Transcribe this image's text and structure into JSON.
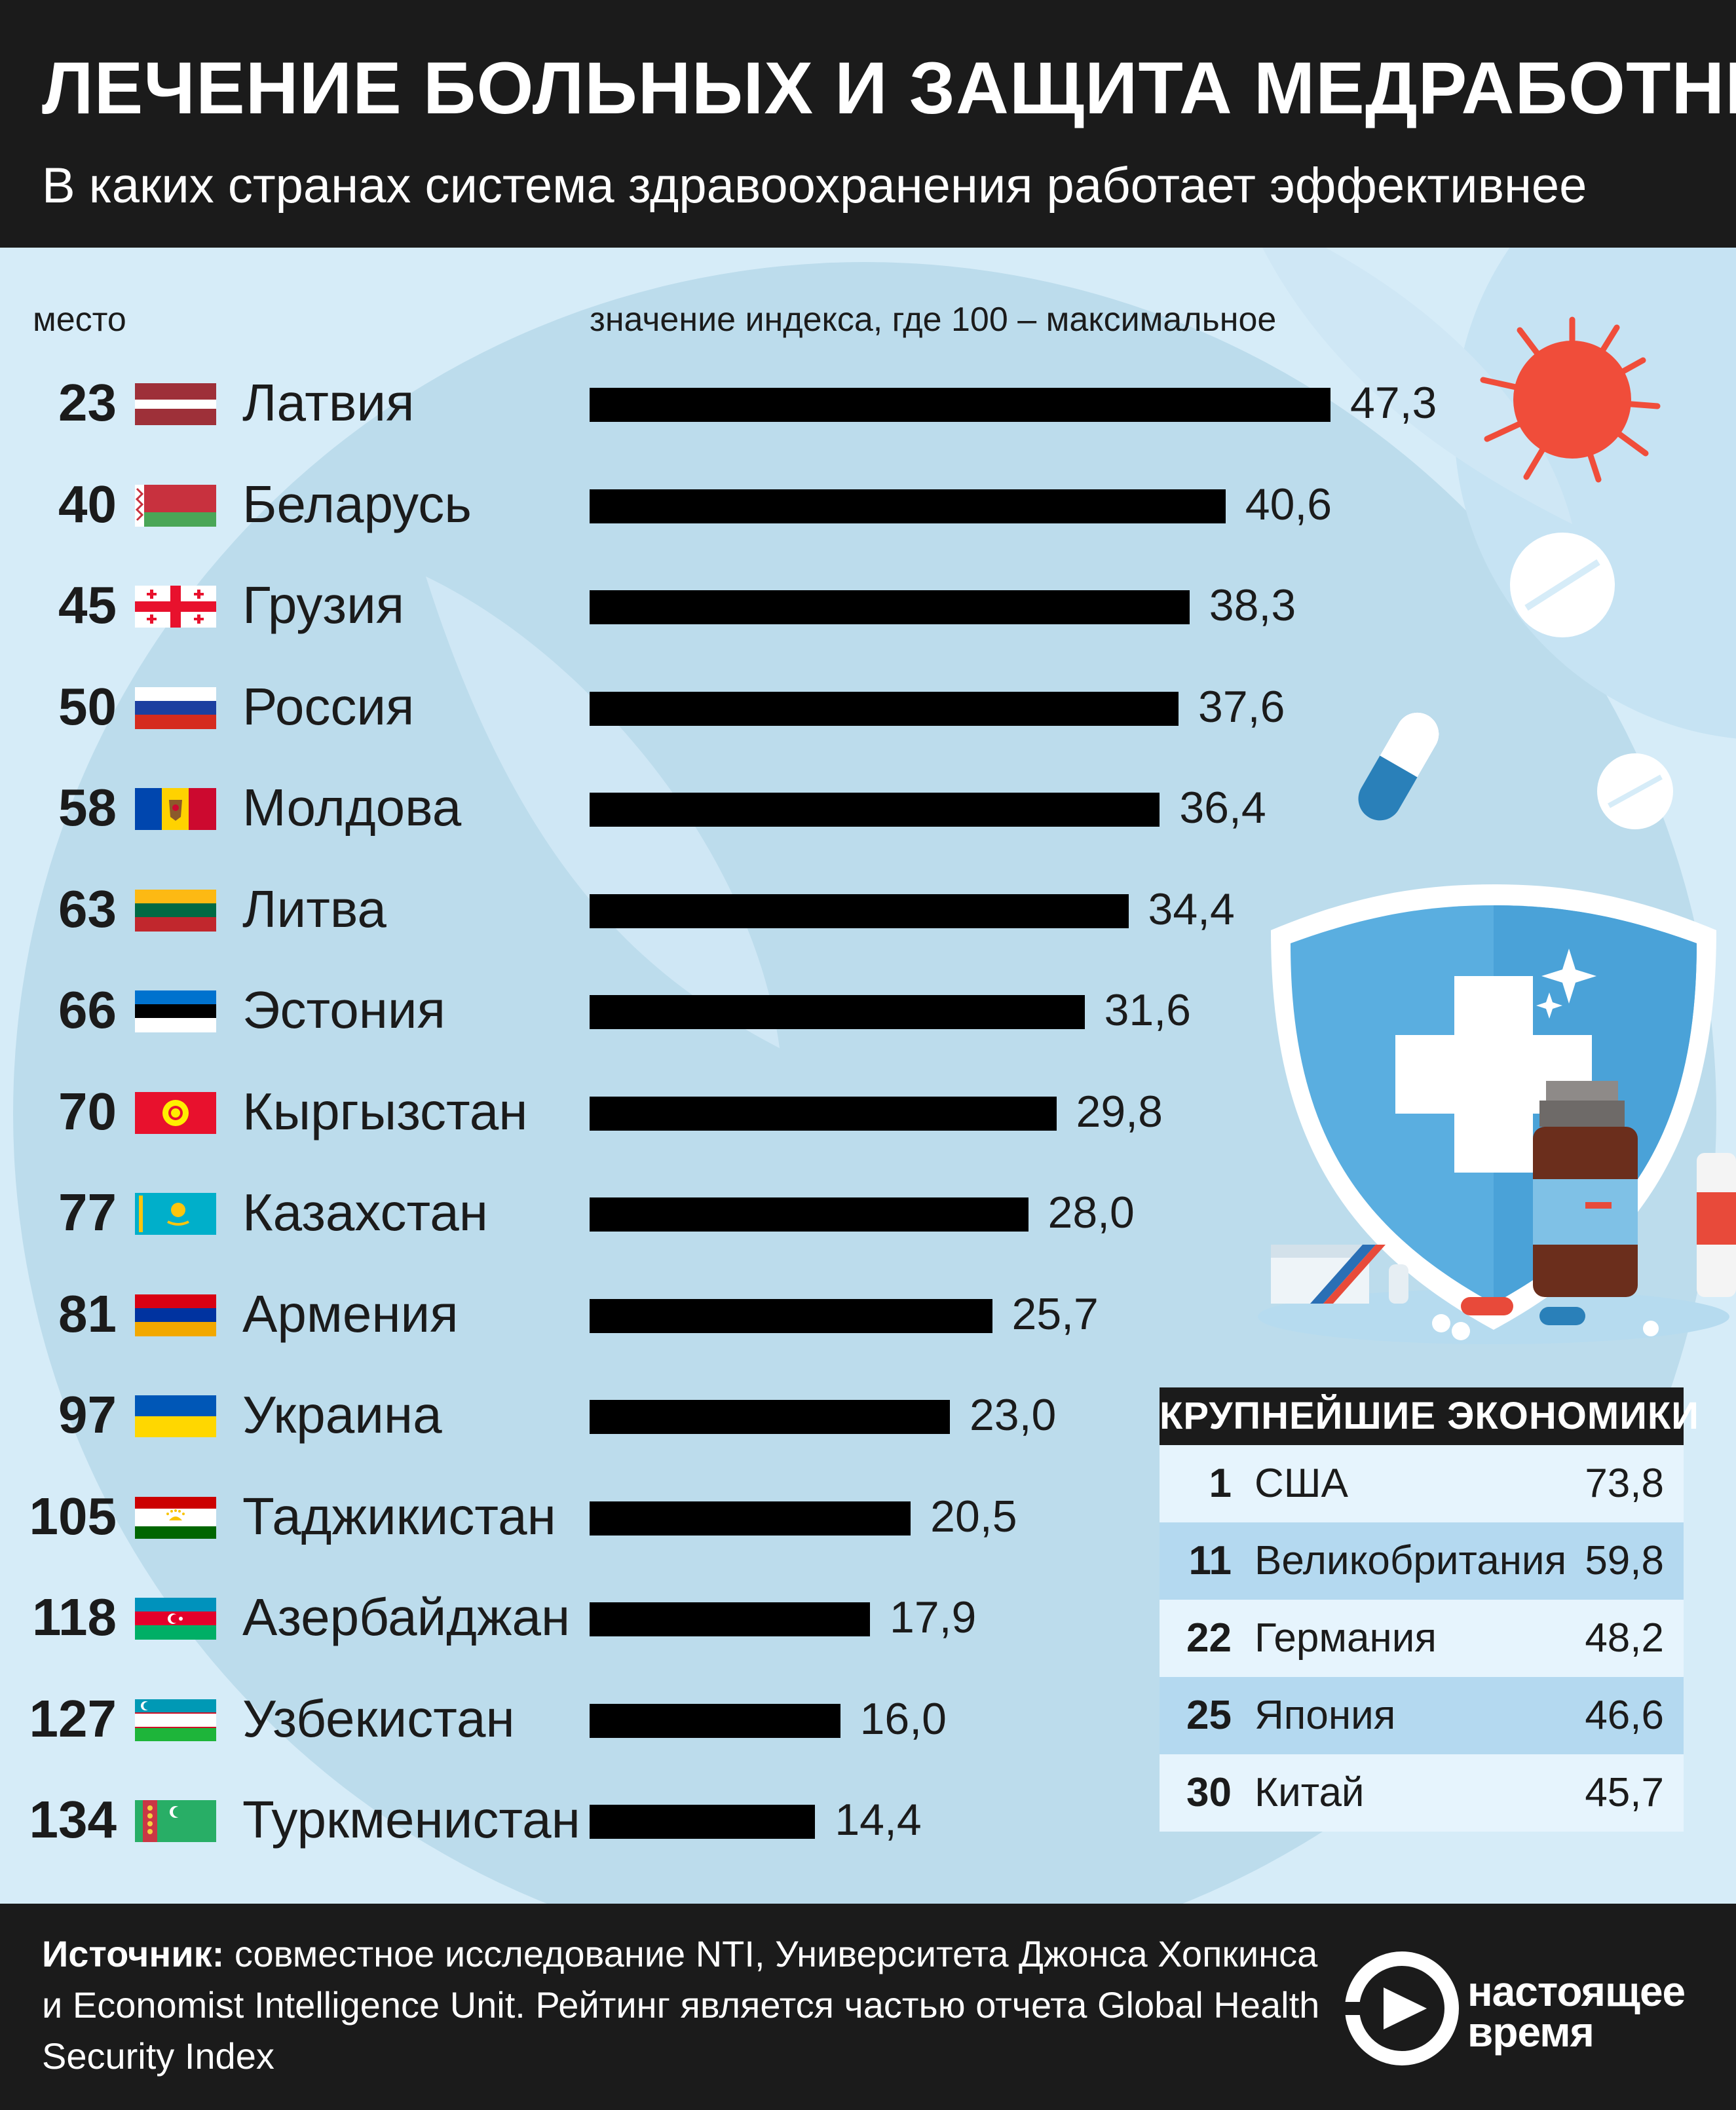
{
  "title": "ЛЕЧЕНИЕ БОЛЬНЫХ И ЗАЩИТА МЕДРАБОТНИКОВ",
  "subtitle": "В каких странах система здравоохранения работает эффективнее",
  "column_headers": {
    "rank": "место",
    "index": "значение индекса, где 100 – максимальное"
  },
  "chart_data": {
    "type": "bar",
    "orientation": "horizontal",
    "xlim": [
      0,
      100
    ],
    "categories": [
      "Латвия",
      "Беларусь",
      "Грузия",
      "Россия",
      "Молдова",
      "Литва",
      "Эстония",
      "Кыргызстан",
      "Казахстан",
      "Армения",
      "Украина",
      "Таджикистан",
      "Азербайджан",
      "Узбекистан",
      "Туркменистан"
    ],
    "ranks": [
      "23",
      "40",
      "45",
      "50",
      "58",
      "63",
      "66",
      "70",
      "77",
      "81",
      "97",
      "105",
      "118",
      "127",
      "134"
    ],
    "values": [
      47.3,
      40.6,
      38.3,
      37.6,
      36.4,
      34.4,
      31.6,
      29.8,
      28.0,
      25.7,
      23.0,
      20.5,
      17.9,
      16.0,
      14.4
    ],
    "value_labels": [
      "47,3",
      "40,6",
      "38,3",
      "37,6",
      "36,4",
      "34,4",
      "31,6",
      "29,8",
      "28,0",
      "25,7",
      "23,0",
      "20,5",
      "17,9",
      "16,0",
      "14,4"
    ],
    "flags": [
      "latvia-flag",
      "belarus-flag",
      "georgia-flag",
      "russia-flag",
      "moldova-flag",
      "lithuania-flag",
      "estonia-flag",
      "kyrgyzstan-flag",
      "kazakhstan-flag",
      "armenia-flag",
      "ukraine-flag",
      "tajikistan-flag",
      "azerbaijan-flag",
      "uzbekistan-flag",
      "turkmenistan-flag"
    ],
    "bar_color": "#000000"
  },
  "economies": {
    "title": "КРУПНЕЙШИЕ ЭКОНОМИКИ",
    "rows": [
      {
        "rank": "1",
        "name": "США",
        "value": "73,8"
      },
      {
        "rank": "11",
        "name": "Великобритания",
        "value": "59,8"
      },
      {
        "rank": "22",
        "name": "Германия",
        "value": "48,2"
      },
      {
        "rank": "25",
        "name": "Япония",
        "value": "46,6"
      },
      {
        "rank": "30",
        "name": "Китай",
        "value": "45,7"
      }
    ]
  },
  "source": {
    "label": "Источник:",
    "text": " совместное исследование NTI, Университета Джонса Хопкинса и Economist Intelligence Unit. Рейтинг является частью отчета Global Health Security Index"
  },
  "logo": {
    "line1": "настоящее",
    "line2": "время"
  },
  "colors": {
    "header_bg": "#1b1b1b",
    "background": "#d6ecf8",
    "virus": "#f04d3a",
    "shield": "#5aaee0",
    "table_highlight": "#b4d9f0"
  }
}
